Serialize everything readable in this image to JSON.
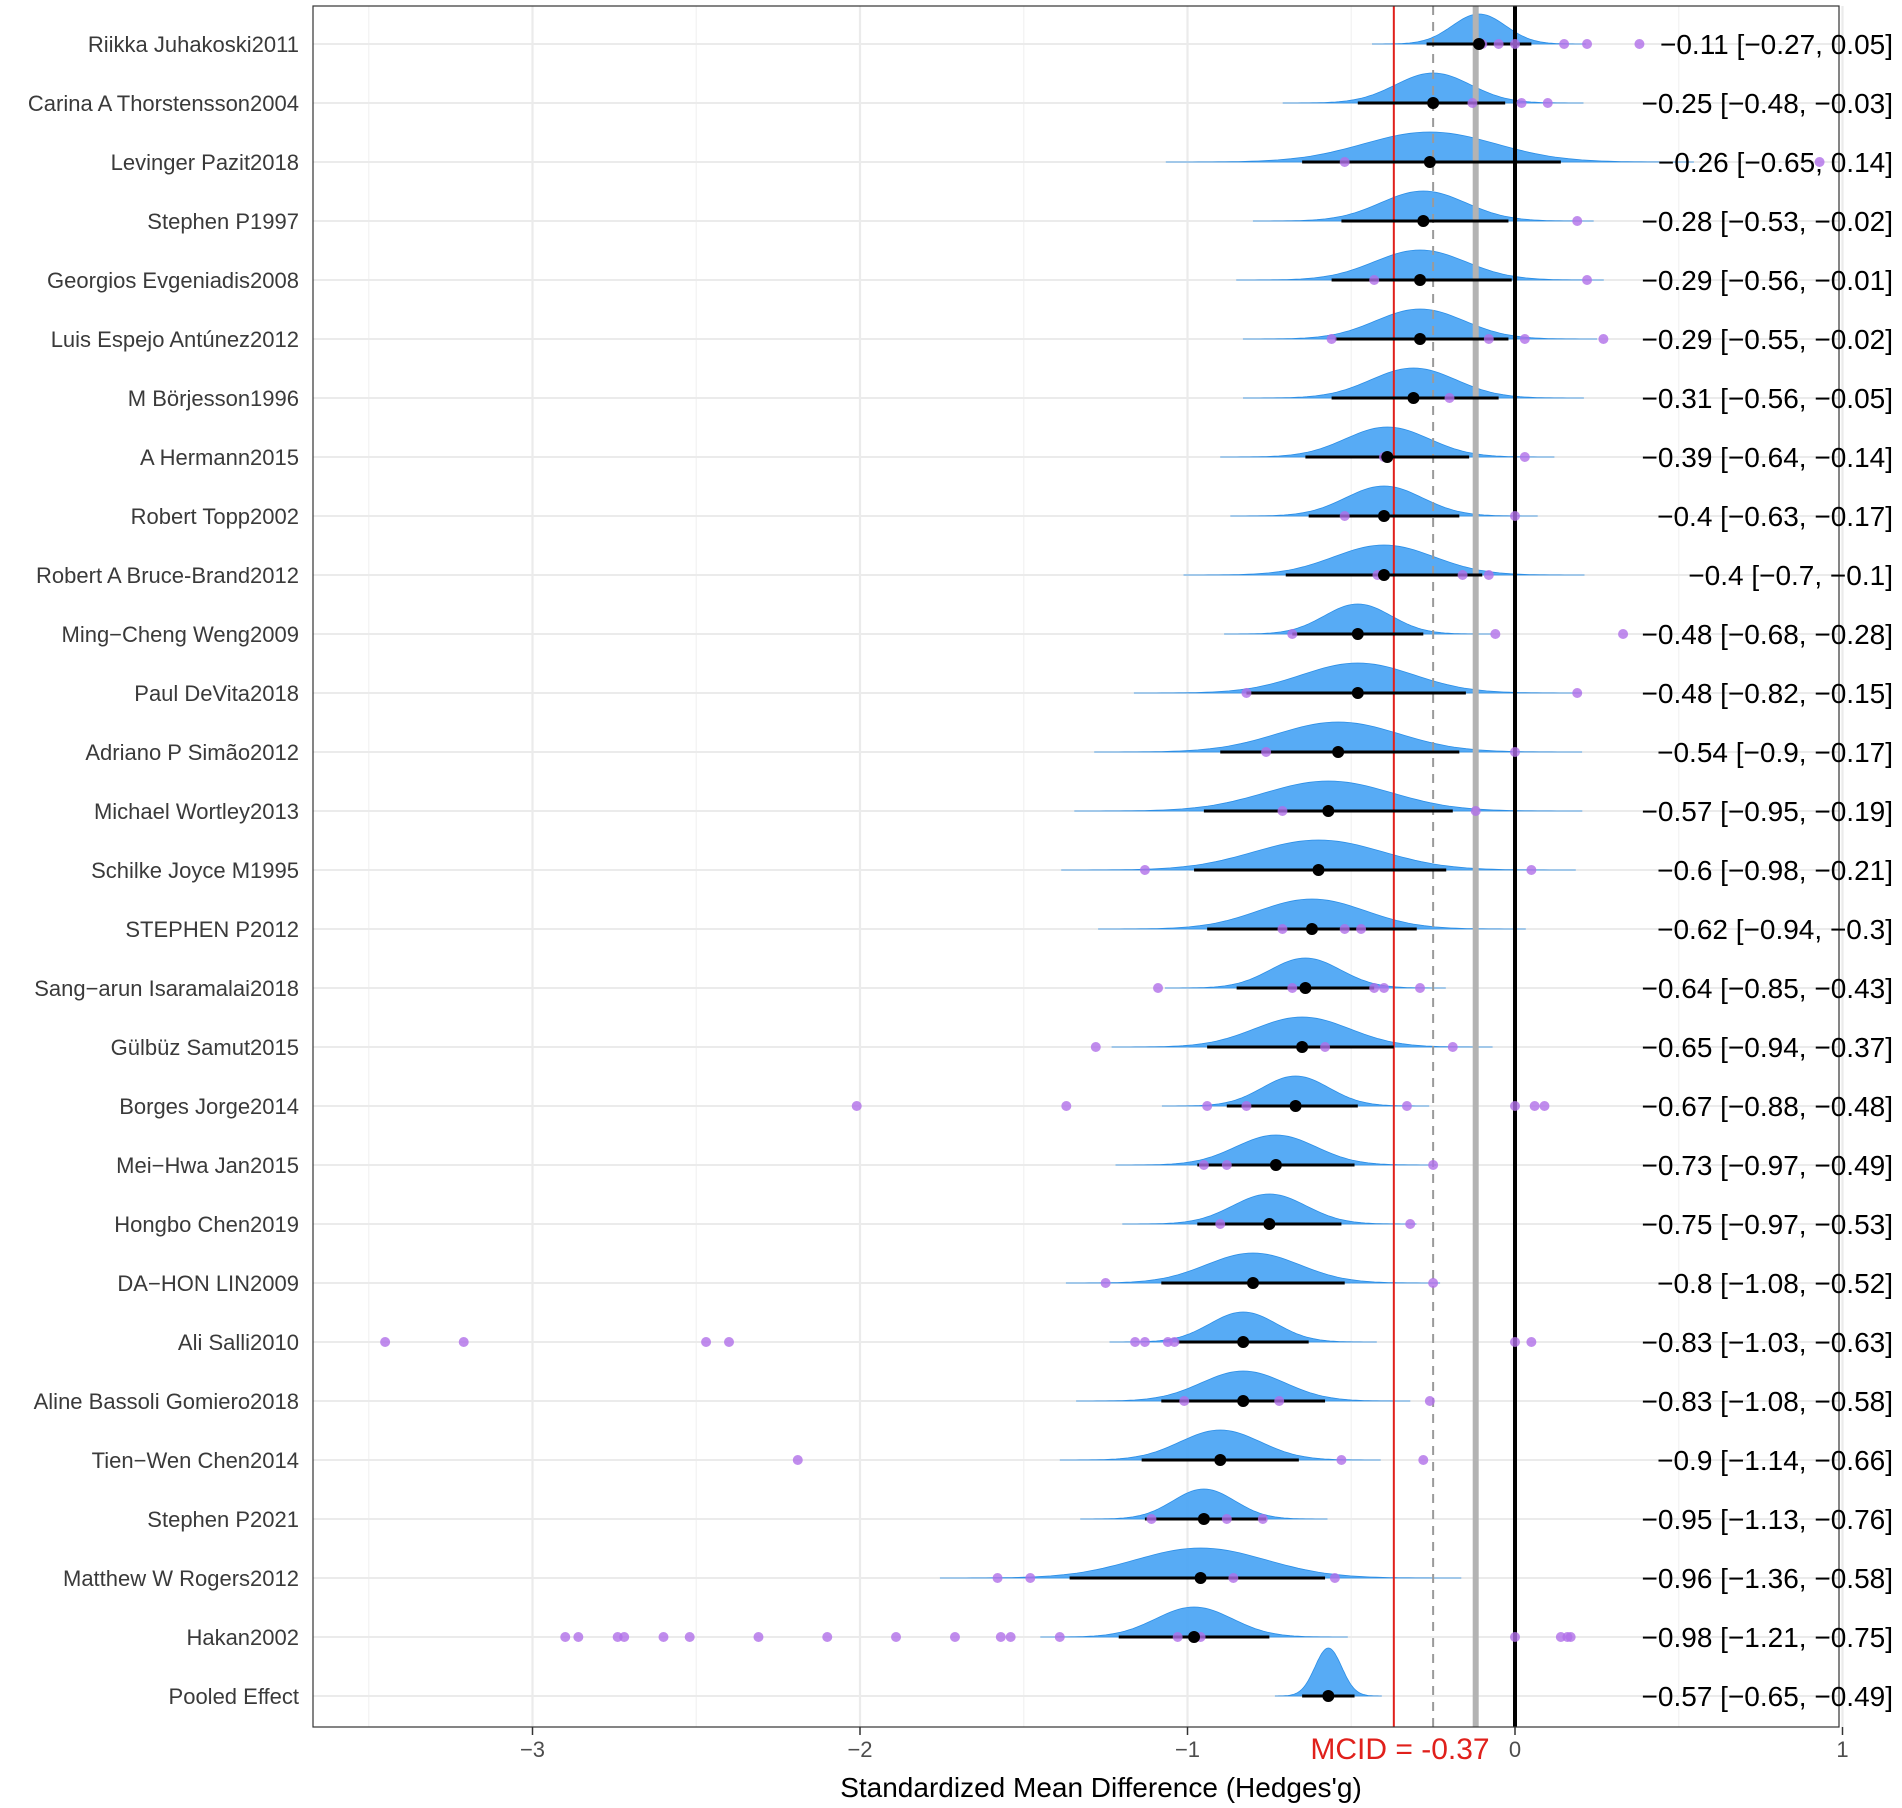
{
  "chart_data": {
    "type": "forest",
    "xlabel": "Standardized Mean Difference (Hedges'g)",
    "xlim": [
      -3.65,
      1.0
    ],
    "x_ticks": [
      -3,
      -2,
      -1,
      0,
      1
    ],
    "x_tick_labels": [
      "−3",
      "−2",
      "−1",
      "0",
      "1"
    ],
    "grid": true,
    "reference_lines": {
      "null_effect": 0,
      "mcid": -0.37,
      "mcid_label": "MCID = -0.37",
      "dashed_line": -0.25,
      "grey_line": -0.12
    },
    "colors": {
      "density": "#4ea7f4",
      "dots": "#b06fe8",
      "point": "#000000",
      "mcid": "#e0201b",
      "grid": "#ebebeb"
    },
    "studies": [
      {
        "name": "Riikka Juhakoski2011",
        "est": -0.11,
        "lo": -0.27,
        "hi": 0.05,
        "label": "−0.11 [−0.27, 0.05]",
        "dots": [
          -0.1,
          0.0,
          0.15,
          0.22,
          0.38,
          -0.05
        ]
      },
      {
        "name": "Carina A Thorstensson2004",
        "est": -0.25,
        "lo": -0.48,
        "hi": -0.03,
        "label": "−0.25 [−0.48, −0.03]",
        "dots": [
          -0.13,
          0.02,
          0.1
        ]
      },
      {
        "name": "Levinger Pazit2018",
        "est": -0.26,
        "lo": -0.65,
        "hi": 0.14,
        "label": "−0.26 [−0.65, 0.14]",
        "dots": [
          -0.52,
          0.93
        ]
      },
      {
        "name": "Stephen P1997",
        "est": -0.28,
        "lo": -0.53,
        "hi": -0.02,
        "label": "−0.28 [−0.53, −0.02]",
        "dots": [
          0.19
        ]
      },
      {
        "name": "Georgios Evgeniadis2008",
        "est": -0.29,
        "lo": -0.56,
        "hi": -0.01,
        "label": "−0.29 [−0.56, −0.01]",
        "dots": [
          -0.43,
          0.22
        ]
      },
      {
        "name": "Luis Espejo Antúnez2012",
        "est": -0.29,
        "lo": -0.55,
        "hi": -0.02,
        "label": "−0.29 [−0.55, −0.02]",
        "dots": [
          -0.56,
          -0.08,
          0.03,
          0.27
        ]
      },
      {
        "name": "M Börjesson1996",
        "est": -0.31,
        "lo": -0.56,
        "hi": -0.05,
        "label": "−0.31 [−0.56, −0.05]",
        "dots": [
          -0.2
        ]
      },
      {
        "name": "A Hermann2015",
        "est": -0.39,
        "lo": -0.64,
        "hi": -0.14,
        "label": "−0.39 [−0.64, −0.14]",
        "dots": [
          -0.4,
          0.03
        ]
      },
      {
        "name": "Robert Topp2002",
        "est": -0.4,
        "lo": -0.63,
        "hi": -0.17,
        "label": "−0.4 [−0.63, −0.17]",
        "dots": [
          -0.52,
          0.0
        ]
      },
      {
        "name": "Robert A Bruce-Brand2012",
        "est": -0.4,
        "lo": -0.7,
        "hi": -0.1,
        "label": "−0.4 [−0.7, −0.1]",
        "dots": [
          -0.42,
          -0.16,
          -0.08
        ]
      },
      {
        "name": "Ming−Cheng Weng2009",
        "est": -0.48,
        "lo": -0.68,
        "hi": -0.28,
        "label": "−0.48 [−0.68, −0.28]",
        "dots": [
          -0.68,
          -0.06,
          0.33
        ]
      },
      {
        "name": "Paul DeVita2018",
        "est": -0.48,
        "lo": -0.82,
        "hi": -0.15,
        "label": "−0.48 [−0.82, −0.15]",
        "dots": [
          -0.82,
          0.19
        ]
      },
      {
        "name": "Adriano P Simão2012",
        "est": -0.54,
        "lo": -0.9,
        "hi": -0.17,
        "label": "−0.54 [−0.9, −0.17]",
        "dots": [
          -0.76,
          0.0
        ]
      },
      {
        "name": "Michael Wortley2013",
        "est": -0.57,
        "lo": -0.95,
        "hi": -0.19,
        "label": "−0.57 [−0.95, −0.19]",
        "dots": [
          -0.71,
          -0.12
        ]
      },
      {
        "name": "Schilke Joyce M1995",
        "est": -0.6,
        "lo": -0.98,
        "hi": -0.21,
        "label": "−0.6 [−0.98, −0.21]",
        "dots": [
          -1.13,
          0.05
        ]
      },
      {
        "name": "STEPHEN P2012",
        "est": -0.62,
        "lo": -0.94,
        "hi": -0.3,
        "label": "−0.62 [−0.94, −0.3]",
        "dots": [
          -0.71,
          -0.52,
          -0.47
        ]
      },
      {
        "name": "Sang−arun Isaramalai2018",
        "est": -0.64,
        "lo": -0.85,
        "hi": -0.43,
        "label": "−0.64 [−0.85, −0.43]",
        "dots": [
          -1.09,
          -0.68,
          -0.43,
          -0.4,
          -0.29
        ]
      },
      {
        "name": "Gülbüz Samut2015",
        "est": -0.65,
        "lo": -0.94,
        "hi": -0.37,
        "label": "−0.65 [−0.94, −0.37]",
        "dots": [
          -1.28,
          -0.58,
          -0.19
        ]
      },
      {
        "name": "Borges Jorge2014",
        "est": -0.67,
        "lo": -0.88,
        "hi": -0.48,
        "label": "−0.67 [−0.88, −0.48]",
        "dots": [
          -2.01,
          -1.37,
          -0.94,
          -0.82,
          -0.33,
          0.0,
          0.06,
          0.09
        ]
      },
      {
        "name": "Mei−Hwa Jan2015",
        "est": -0.73,
        "lo": -0.97,
        "hi": -0.49,
        "label": "−0.73 [−0.97, −0.49]",
        "dots": [
          -0.95,
          -0.88,
          -0.25
        ]
      },
      {
        "name": "Hongbo Chen2019",
        "est": -0.75,
        "lo": -0.97,
        "hi": -0.53,
        "label": "−0.75 [−0.97, −0.53]",
        "dots": [
          -0.9,
          -0.32
        ]
      },
      {
        "name": "DA−HON LIN2009",
        "est": -0.8,
        "lo": -1.08,
        "hi": -0.52,
        "label": "−0.8 [−1.08, −0.52]",
        "dots": [
          -1.25,
          -0.25
        ]
      },
      {
        "name": "Ali Salli2010",
        "est": -0.83,
        "lo": -1.03,
        "hi": -0.63,
        "label": "−0.83 [−1.03, −0.63]",
        "dots": [
          -3.45,
          -3.21,
          -2.47,
          -2.4,
          -1.16,
          -1.13,
          -1.06,
          -1.04,
          0.0,
          0.05
        ]
      },
      {
        "name": "Aline Bassoli Gomiero2018",
        "est": -0.83,
        "lo": -1.08,
        "hi": -0.58,
        "label": "−0.83 [−1.08, −0.58]",
        "dots": [
          -1.01,
          -0.72,
          -0.26
        ]
      },
      {
        "name": "Tien−Wen Chen2014",
        "est": -0.9,
        "lo": -1.14,
        "hi": -0.66,
        "label": "−0.9 [−1.14, −0.66]",
        "dots": [
          -2.19,
          -0.53,
          -0.28
        ]
      },
      {
        "name": "Stephen P2021",
        "est": -0.95,
        "lo": -1.13,
        "hi": -0.76,
        "label": "−0.95 [−1.13, −0.76]",
        "dots": [
          -1.11,
          -0.88,
          -0.77
        ]
      },
      {
        "name": "Matthew W Rogers2012",
        "est": -0.96,
        "lo": -1.36,
        "hi": -0.58,
        "label": "−0.96 [−1.36, −0.58]",
        "dots": [
          -1.58,
          -1.48,
          -0.86,
          -0.55
        ]
      },
      {
        "name": "Hakan2002",
        "est": -0.98,
        "lo": -1.21,
        "hi": -0.75,
        "label": "−0.98 [−1.21, −0.75]",
        "dots": [
          -2.9,
          -2.86,
          -2.74,
          -2.72,
          -2.6,
          -2.52,
          -2.31,
          -2.1,
          -1.89,
          -1.71,
          -1.57,
          -1.54,
          -1.39,
          -1.03,
          -0.96,
          0.0,
          0.14,
          0.16,
          0.17
        ]
      },
      {
        "name": "Pooled Effect",
        "est": -0.57,
        "lo": -0.65,
        "hi": -0.49,
        "label": "−0.57 [−0.65, −0.49]",
        "dots": []
      }
    ]
  }
}
